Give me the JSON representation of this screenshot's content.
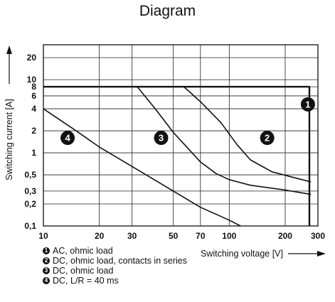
{
  "chart_data": {
    "type": "line",
    "title": "Diagram",
    "xlabel": "Switching voltage [V]",
    "ylabel": "Switching current [A]",
    "xscale": "log",
    "yscale": "log",
    "xlim": [
      10,
      300
    ],
    "ylim": [
      0.1,
      30
    ],
    "grid": true,
    "x_ticks": [
      10,
      20,
      30,
      50,
      70,
      100,
      200,
      300
    ],
    "x_tick_labels": [
      "10",
      "20",
      "30",
      "50",
      "70",
      "100",
      "200",
      "300"
    ],
    "y_ticks": [
      0.1,
      0.2,
      0.3,
      0.5,
      1,
      2,
      4,
      6,
      8,
      10,
      20
    ],
    "y_tick_labels": [
      "0,1",
      "0,2",
      "0,3",
      "0,5",
      "1",
      "2",
      "4",
      "6",
      "8",
      "10",
      "20"
    ],
    "series": [
      {
        "id": "1",
        "x": [
          10,
          270,
          270
        ],
        "y": [
          8,
          8,
          0.1
        ]
      },
      {
        "id": "2",
        "x": [
          57,
          70,
          90,
          110,
          130,
          170,
          230,
          275
        ],
        "y": [
          8,
          5,
          2.6,
          1.3,
          0.8,
          0.55,
          0.45,
          0.4
        ]
      },
      {
        "id": "3",
        "x": [
          32,
          40,
          50,
          60,
          70,
          85,
          100,
          130,
          200,
          275
        ],
        "y": [
          8,
          4,
          1.9,
          1.15,
          0.75,
          0.52,
          0.43,
          0.36,
          0.31,
          0.27
        ]
      },
      {
        "id": "4",
        "x": [
          10,
          15,
          20,
          30,
          50,
          70,
          100,
          115
        ],
        "y": [
          4,
          2,
          1.2,
          0.65,
          0.3,
          0.18,
          0.12,
          0.1
        ]
      }
    ],
    "curve_markers": [
      {
        "id": "1",
        "x": 265,
        "y": 4.6
      },
      {
        "id": "2",
        "x": 160,
        "y": 1.6
      },
      {
        "id": "3",
        "x": 43,
        "y": 1.6
      },
      {
        "id": "4",
        "x": 13.5,
        "y": 1.6
      }
    ],
    "legend": [
      {
        "marker": "1",
        "text": "AC, ohmic load"
      },
      {
        "marker": "2",
        "text": "DC, ohmic load, contacts in series"
      },
      {
        "marker": "3",
        "text": "DC, ohmic load"
      },
      {
        "marker": "4",
        "text": "DC, L/R = 40 ms"
      }
    ]
  }
}
